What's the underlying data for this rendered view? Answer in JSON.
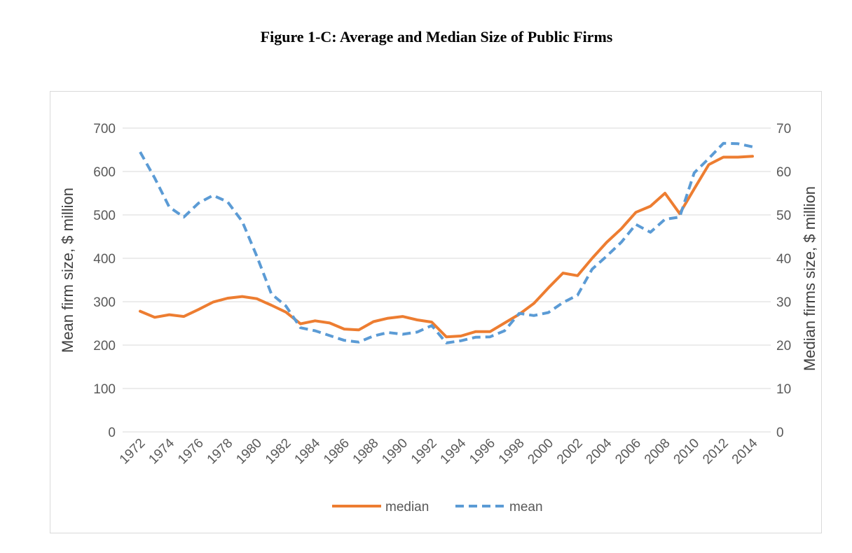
{
  "figure": {
    "title": "Figure 1-C: Average and Median Size of Public Firms"
  },
  "colors": {
    "median": "#ED7D31",
    "mean": "#5B9BD5",
    "grid": "#d9d9d9",
    "text": "#595959"
  },
  "chart_data": {
    "type": "line",
    "title": "Figure 1-C: Average and Median Size of Public Firms",
    "x": [
      1972,
      1973,
      1974,
      1975,
      1976,
      1977,
      1978,
      1979,
      1980,
      1981,
      1982,
      1983,
      1984,
      1985,
      1986,
      1987,
      1988,
      1989,
      1990,
      1991,
      1992,
      1993,
      1994,
      1995,
      1996,
      1997,
      1998,
      1999,
      2000,
      2001,
      2002,
      2003,
      2004,
      2005,
      2006,
      2007,
      2008,
      2009,
      2010,
      2011,
      2012,
      2013,
      2014
    ],
    "x_tick_labels": [
      "1972",
      "1974",
      "1976",
      "1978",
      "1980",
      "1982",
      "1984",
      "1986",
      "1988",
      "1990",
      "1992",
      "1994",
      "1996",
      "1998",
      "2000",
      "2002",
      "2004",
      "2006",
      "2008",
      "2010",
      "2012",
      "2014"
    ],
    "ylabel": "Mean firm size, $ million",
    "ylim": [
      0,
      700
    ],
    "y_ticks": [
      0,
      100,
      200,
      300,
      400,
      500,
      600,
      700
    ],
    "y2label": "Median firms size, $ million",
    "y2lim": [
      0,
      70
    ],
    "y2_ticks": [
      0,
      10,
      20,
      30,
      40,
      50,
      60,
      70
    ],
    "grid": true,
    "legend_position": "bottom",
    "series": [
      {
        "name": "median",
        "axis": "right",
        "style": "solid",
        "values": [
          27.8,
          26.4,
          27.0,
          26.6,
          28.2,
          29.9,
          30.8,
          31.2,
          30.7,
          29.2,
          27.6,
          24.9,
          25.6,
          25.1,
          23.7,
          23.5,
          25.4,
          26.2,
          26.6,
          25.8,
          25.3,
          21.9,
          22.1,
          23.1,
          23.1,
          25.1,
          27.1,
          29.6,
          33.2,
          36.6,
          36.0,
          40.0,
          43.7,
          46.8,
          50.6,
          52.0,
          55.0,
          50.3,
          56.0,
          61.6,
          63.3,
          63.3,
          63.5
        ]
      },
      {
        "name": "mean",
        "axis": "left",
        "style": "dashed",
        "values": [
          645,
          585,
          518,
          495,
          527,
          545,
          530,
          485,
          405,
          318,
          290,
          240,
          233,
          222,
          211,
          207,
          221,
          229,
          225,
          230,
          245,
          205,
          210,
          218,
          219,
          233,
          273,
          268,
          275,
          298,
          315,
          375,
          405,
          437,
          478,
          460,
          490,
          495,
          597,
          630,
          665,
          664,
          657
        ]
      }
    ]
  }
}
